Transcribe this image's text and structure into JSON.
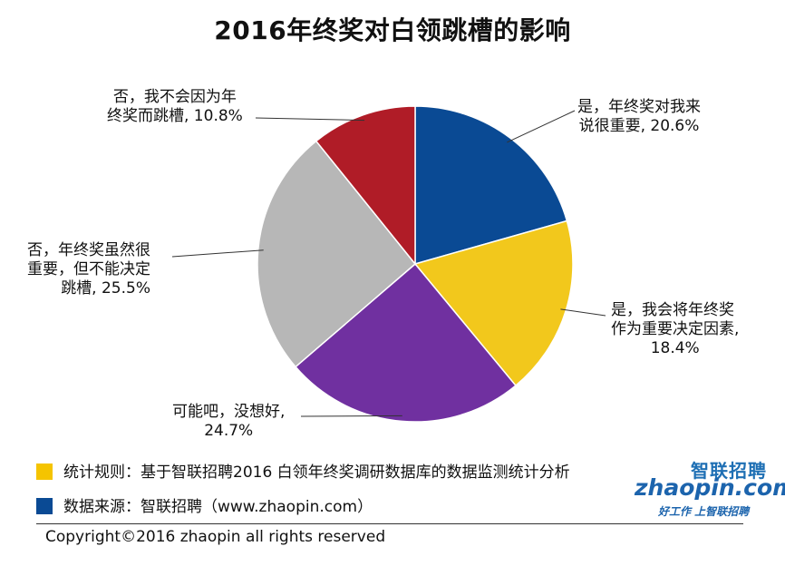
{
  "title": "2016年终奖对白领跳槽的影响",
  "chart_data": {
    "type": "pie",
    "title": "2016年终奖对白领跳槽的影响",
    "slices": [
      {
        "label_lines": [
          "是，年终奖对我来",
          "说很重要, 20.6%"
        ],
        "value": 20.6,
        "color": "#0a4a94"
      },
      {
        "label_lines": [
          "是，我会将年终奖",
          "作为重要决定因素,",
          "18.4%"
        ],
        "value": 18.4,
        "color": "#f2c81c"
      },
      {
        "label_lines": [
          "可能吧，没想好,",
          "24.7%"
        ],
        "value": 24.7,
        "color": "#7030a0"
      },
      {
        "label_lines": [
          "否，年终奖虽然很",
          "重要，但不能决定",
          "跳槽, 25.5%"
        ],
        "value": 25.5,
        "color": "#b7b7b7"
      },
      {
        "label_lines": [
          "否，我不会因为年",
          "终奖而跳槽, 10.8%"
        ],
        "value": 10.8,
        "color": "#b01c27"
      }
    ]
  },
  "notes": {
    "rule": {
      "text": "统计规则：基于智联招聘2016 白领年终奖调研数据库的数据监测统计分析",
      "color": "#f5c400"
    },
    "source": {
      "text": "数据来源：智联招聘（www.zhaopin.com）",
      "color": "#0a4a94"
    }
  },
  "logo": {
    "cn": "智联招聘",
    "en": "zhaopin.com",
    "tagline": "好工作  上智联招聘"
  },
  "copyright": "Copyright©2016 zhaopin all rights reserved"
}
